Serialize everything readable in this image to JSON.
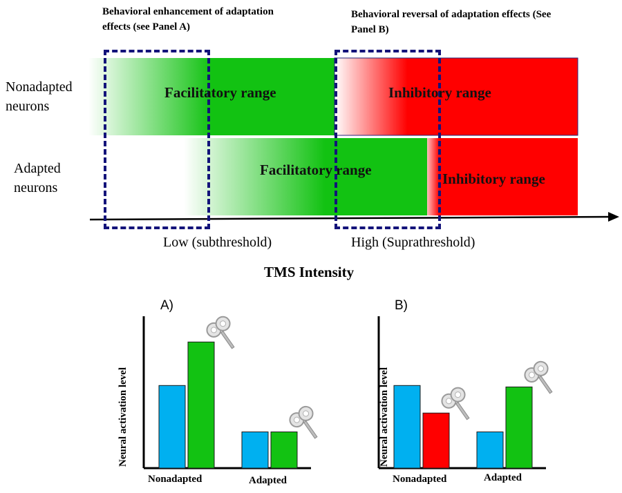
{
  "top": {
    "annotation_a": "Behavioral enhancement of adaptation effects (see Panel A)",
    "annotation_b": "Behavioral reversal of adaptation effects (See Panel B)",
    "row_nonadapted": "Nonadapted neurons",
    "row_adapted": "Adapted neurons",
    "nonadapted_facilitatory": "Facilitatory range",
    "nonadapted_inhibitory": "Inhibitory range",
    "adapted_facilitatory": "Facilitatory range",
    "adapted_inhibitory": "Inhibitory range",
    "axis_low": "Low (subthreshold)",
    "axis_high": "High (Suprathreshold)",
    "axis_title": "TMS Intensity",
    "colors": {
      "facilitatory": "#12c212",
      "inhibitory": "#ff0000",
      "box": "#13137a"
    }
  },
  "chart_data": [
    {
      "type": "bar",
      "panel": "A)",
      "ylabel": "Neural activation level",
      "categories": [
        "Nonadapted",
        "Adapted"
      ],
      "series": [
        {
          "values": [
            0.57,
            0.25
          ],
          "color": "#00b0f0"
        },
        {
          "values": [
            0.87,
            0.25
          ],
          "color": "#12c212"
        }
      ],
      "tms_icon_on": [
        "series2-Nonadapted",
        "series2-Adapted"
      ]
    },
    {
      "type": "bar",
      "panel": "B)",
      "ylabel": "Neural activation level",
      "categories": [
        "Nonadapted",
        "Adapted"
      ],
      "series": [
        {
          "values": [
            0.57,
            0.25
          ],
          "color": "#00b0f0"
        },
        {
          "values": [
            0.38,
            0.56
          ],
          "color_by_category": [
            "#ff0000",
            "#12c212"
          ]
        }
      ],
      "tms_icon_on": [
        "series2-Nonadapted",
        "series2-Adapted"
      ]
    }
  ]
}
